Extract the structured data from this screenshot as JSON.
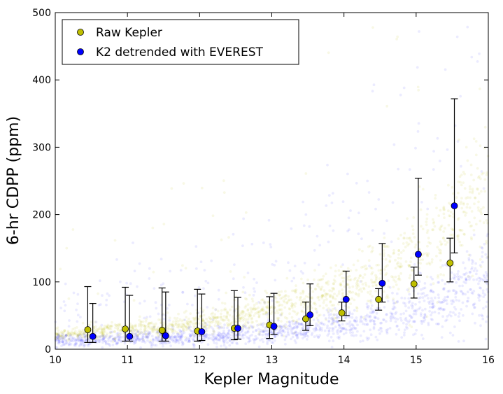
{
  "chart_data": {
    "type": "scatter",
    "xlabel": "Kepler Magnitude",
    "ylabel": "6-hr CDPP (ppm)",
    "xlim": [
      10,
      16
    ],
    "ylim": [
      0,
      500
    ],
    "x_ticks": [
      "10",
      "11",
      "12",
      "13",
      "14",
      "15",
      "16"
    ],
    "y_ticks": [
      "0",
      "100",
      "200",
      "300",
      "400",
      "500"
    ],
    "grid": false,
    "legend_position": "top-left",
    "series": [
      {
        "name": "Raw Kepler",
        "color": "#bfbf00",
        "x": [
          10.45,
          10.97,
          11.48,
          11.97,
          12.48,
          12.97,
          13.47,
          13.97,
          14.48,
          14.97,
          15.47
        ],
        "y": [
          29,
          30,
          28,
          27,
          31,
          36,
          45,
          54,
          74,
          97,
          128
        ],
        "y_lower": [
          10,
          12,
          12,
          12,
          14,
          16,
          28,
          42,
          58,
          76,
          100
        ],
        "y_upper": [
          93,
          92,
          91,
          89,
          87,
          78,
          70,
          70,
          90,
          122,
          165
        ]
      },
      {
        "name": "K2 detrended with EVEREST",
        "color": "#0000ff",
        "x": [
          10.52,
          11.03,
          11.53,
          12.03,
          12.53,
          13.03,
          13.53,
          14.03,
          14.53,
          15.03,
          15.53
        ],
        "y": [
          19,
          19,
          20,
          26,
          31,
          34,
          51,
          74,
          98,
          141,
          213
        ],
        "y_lower": [
          10,
          12,
          12,
          13,
          15,
          22,
          35,
          50,
          70,
          110,
          143
        ],
        "y_upper": [
          68,
          80,
          85,
          82,
          77,
          83,
          97,
          116,
          157,
          254,
          372
        ]
      }
    ]
  }
}
